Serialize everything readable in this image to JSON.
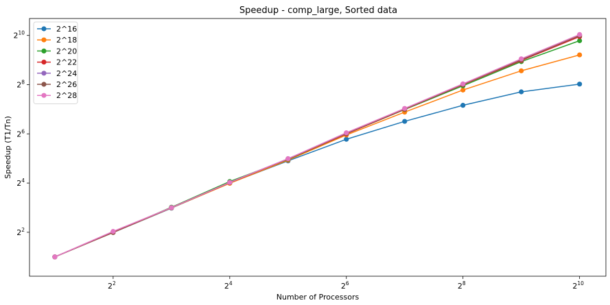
{
  "chart_data": {
    "type": "line",
    "title": "Speedup - comp_large, Sorted data",
    "xlabel": "Number of Processors",
    "ylabel": "Speedup (T1/Tn)",
    "xscale": "log2",
    "yscale": "log2",
    "x": [
      2,
      4,
      8,
      16,
      32,
      64,
      128,
      256,
      512,
      1024
    ],
    "x_ticks": [
      {
        "value": 4,
        "base": "2",
        "exp": "2"
      },
      {
        "value": 16,
        "base": "2",
        "exp": "4"
      },
      {
        "value": 64,
        "base": "2",
        "exp": "6"
      },
      {
        "value": 256,
        "base": "2",
        "exp": "8"
      },
      {
        "value": 1024,
        "base": "2",
        "exp": "10"
      }
    ],
    "y_ticks": [
      {
        "value": 4,
        "base": "2",
        "exp": "2"
      },
      {
        "value": 16,
        "base": "2",
        "exp": "4"
      },
      {
        "value": 64,
        "base": "2",
        "exp": "6"
      },
      {
        "value": 256,
        "base": "2",
        "exp": "8"
      },
      {
        "value": 1024,
        "base": "2",
        "exp": "10"
      }
    ],
    "xlim": [
      1.48,
      1400
    ],
    "ylim": [
      1.16,
      1650
    ],
    "grid": false,
    "legend_position": "upper-left",
    "series": [
      {
        "name": "2^16",
        "color": "#1f77b4",
        "values": [
          2.0,
          3.97,
          7.9,
          16.0,
          29.9,
          55.0,
          91.0,
          143.0,
          209.0,
          260.0
        ]
      },
      {
        "name": "2^18",
        "color": "#ff7f0e",
        "values": [
          2.0,
          3.99,
          7.95,
          15.9,
          30.5,
          62.0,
          118.0,
          220.0,
          378.0,
          592.0
        ]
      },
      {
        "name": "2^20",
        "color": "#2ca02c",
        "values": [
          2.0,
          4.0,
          8.1,
          16.7,
          31.2,
          64.0,
          127.0,
          248.0,
          490.0,
          883.0
        ]
      },
      {
        "name": "2^22",
        "color": "#d62728",
        "values": [
          2.0,
          4.0,
          8.0,
          16.2,
          31.5,
          64.0,
          128.0,
          256.0,
          505.0,
          990.0
        ]
      },
      {
        "name": "2^24",
        "color": "#9467bd",
        "values": [
          2.0,
          4.05,
          8.0,
          16.3,
          31.8,
          65.0,
          130.0,
          260.0,
          522.0,
          1040.0
        ]
      },
      {
        "name": "2^26",
        "color": "#8c564b",
        "values": [
          2.0,
          4.05,
          8.0,
          16.2,
          31.6,
          65.0,
          129.0,
          258.0,
          515.0,
          1020.0
        ]
      },
      {
        "name": "2^28",
        "color": "#e377c2",
        "values": [
          2.0,
          4.1,
          8.0,
          16.3,
          31.8,
          66.0,
          131.0,
          262.0,
          530.0,
          1050.0
        ]
      }
    ]
  }
}
